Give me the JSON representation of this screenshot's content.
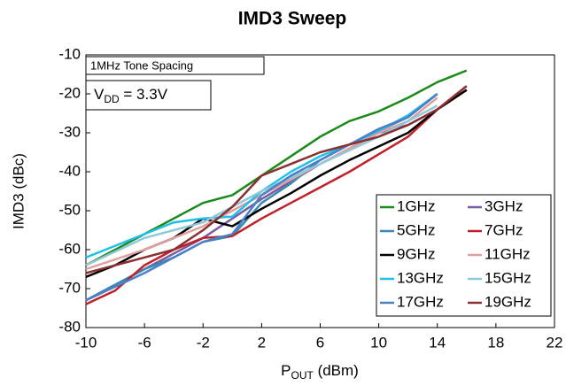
{
  "chart_data": {
    "type": "line",
    "title": "IMD3 Sweep",
    "xlabel": {
      "main": "P",
      "sub": "OUT",
      "rest": " (dBm)"
    },
    "ylabel": "IMD3 (dBc)",
    "annotations": {
      "spacing": "1MHz Tone Spacing",
      "vdd": {
        "main": "V",
        "sub": "DD",
        "rest": " = 3.3V"
      }
    },
    "xlim": [
      -10,
      22
    ],
    "xticks": [
      -10,
      -6,
      -2,
      2,
      6,
      10,
      14,
      18,
      22
    ],
    "ylim": [
      -80,
      -10
    ],
    "yticks": [
      -10,
      -20,
      -30,
      -40,
      -50,
      -60,
      -70,
      -80
    ],
    "grid": false,
    "legend": "lower right",
    "series": [
      {
        "name": "1GHz",
        "color": "#1a8a1a",
        "x": [
          -10,
          -6,
          -2,
          0,
          2,
          4,
          6,
          8,
          10,
          12,
          14,
          16
        ],
        "values": [
          -64,
          -56,
          -48,
          -46,
          -41,
          -36,
          -31,
          -27,
          -24.5,
          -21,
          -17,
          -14
        ]
      },
      {
        "name": "3GHz",
        "color": "#7a5aa0",
        "x": [
          -10,
          -6,
          -2,
          2,
          6,
          10,
          12,
          14,
          16
        ],
        "values": [
          -73,
          -65,
          -57,
          -47,
          -38,
          -30,
          -28,
          -24,
          -18
        ]
      },
      {
        "name": "5GHz",
        "color": "#3a8ab0",
        "x": [
          -10,
          -8,
          -6,
          -4,
          -2,
          0,
          2,
          4,
          6,
          8,
          10,
          12,
          14
        ],
        "values": [
          -73,
          -69,
          -65,
          -62,
          -58,
          -56.5,
          -48,
          -43,
          -37,
          -33,
          -29.5,
          -26,
          -20
        ]
      },
      {
        "name": "7GHz",
        "color": "#c0202a",
        "x": [
          -10,
          -8,
          -6,
          -4,
          -2,
          0,
          2,
          4,
          6,
          8,
          10,
          12,
          14,
          16
        ],
        "values": [
          -74,
          -70.5,
          -64,
          -60,
          -57,
          -56.5,
          -52,
          -48,
          -44,
          -40,
          -35.5,
          -31,
          -24,
          -19
        ]
      },
      {
        "name": "9GHz",
        "color": "#000000",
        "x": [
          -10,
          -8,
          -6,
          -4,
          -2,
          0,
          2,
          4,
          6,
          8,
          10,
          12,
          14,
          16
        ],
        "values": [
          -67,
          -64,
          -60,
          -57,
          -52,
          -54,
          -49.5,
          -45.5,
          -41,
          -37,
          -33.5,
          -30,
          -24,
          -19
        ]
      },
      {
        "name": "11GHz",
        "color": "#e0a0a0",
        "x": [
          -10,
          -6,
          -2,
          0,
          2,
          4,
          6,
          8,
          10,
          12,
          14
        ],
        "values": [
          -65,
          -60,
          -54,
          -50,
          -46,
          -42,
          -38,
          -34,
          -30,
          -27,
          -21
        ]
      },
      {
        "name": "13GHz",
        "color": "#20c0e8",
        "x": [
          -10,
          -8,
          -6,
          -4,
          -2,
          0,
          2,
          4,
          6,
          8,
          10,
          12,
          14
        ],
        "values": [
          -62,
          -59,
          -56,
          -53,
          -52,
          -51.5,
          -45,
          -40,
          -36,
          -33,
          -29.5,
          -25.5,
          -20
        ]
      },
      {
        "name": "15GHz",
        "color": "#90c8d8",
        "x": [
          -10,
          -6,
          -2,
          0,
          2,
          6,
          10,
          14
        ],
        "values": [
          -64,
          -57,
          -53,
          -49,
          -45,
          -38,
          -31,
          -23
        ]
      },
      {
        "name": "17GHz",
        "color": "#4a80c8",
        "x": [
          -10,
          -6,
          -2,
          0,
          2,
          4,
          6,
          8,
          10,
          12,
          14
        ],
        "values": [
          -73,
          -66,
          -58,
          -56,
          -46,
          -41,
          -37,
          -33,
          -29,
          -26,
          -20
        ]
      },
      {
        "name": "19GHz",
        "color": "#8a3030",
        "x": [
          -10,
          -6,
          -4,
          -2,
          0,
          2,
          4,
          6,
          10,
          12,
          14,
          16
        ],
        "values": [
          -66,
          -62,
          -60,
          -55,
          -49,
          -41,
          -38,
          -35,
          -31,
          -28,
          -24,
          -18
        ]
      }
    ]
  }
}
